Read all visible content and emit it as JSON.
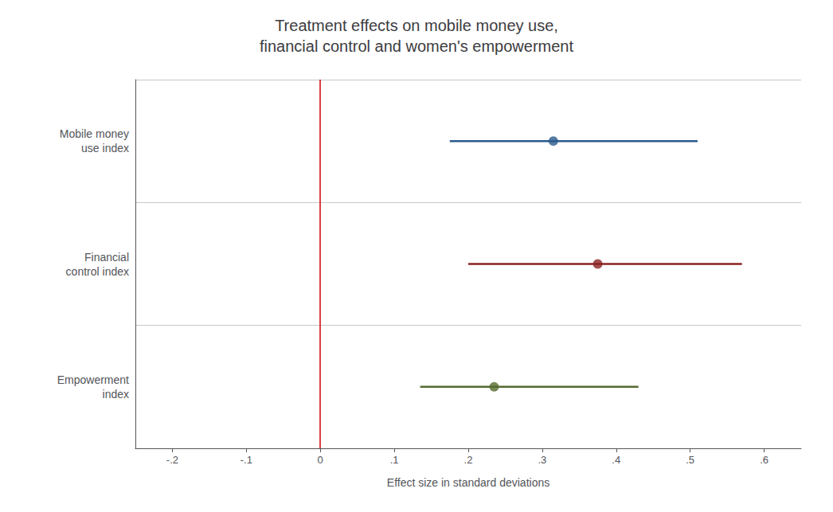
{
  "chart_data": {
    "type": "scatter",
    "orientation": "horizontal",
    "title": "Treatment effects on mobile money use,\nfinancial control and women's empowerment",
    "xlabel": "Effect size in standard deviations",
    "categories": [
      "Mobile money\nuse index",
      "Financial\ncontrol index",
      "Empowerment\nindex"
    ],
    "values": [
      0.315,
      0.375,
      0.235
    ],
    "ci_low": [
      0.175,
      0.2,
      0.135
    ],
    "ci_high": [
      0.51,
      0.57,
      0.43
    ],
    "colors": [
      "#2a5a8c",
      "#8b2323",
      "#556b2f"
    ],
    "xlim": [
      -0.25,
      0.65
    ],
    "xticks": [
      {
        "value": -0.2,
        "label": "-.2"
      },
      {
        "value": -0.1,
        "label": "-.1"
      },
      0,
      {
        "value": 0.1,
        "label": ".1"
      },
      {
        "value": 0.2,
        "label": ".2"
      },
      {
        "value": 0.3,
        "label": ".3"
      },
      {
        "value": 0.4,
        "label": ".4"
      },
      {
        "value": 0.5,
        "label": ".5"
      },
      {
        "value": 0.6,
        "label": ".6"
      }
    ],
    "vline": {
      "x": 0,
      "color": "#cc0000"
    },
    "grid": false
  }
}
